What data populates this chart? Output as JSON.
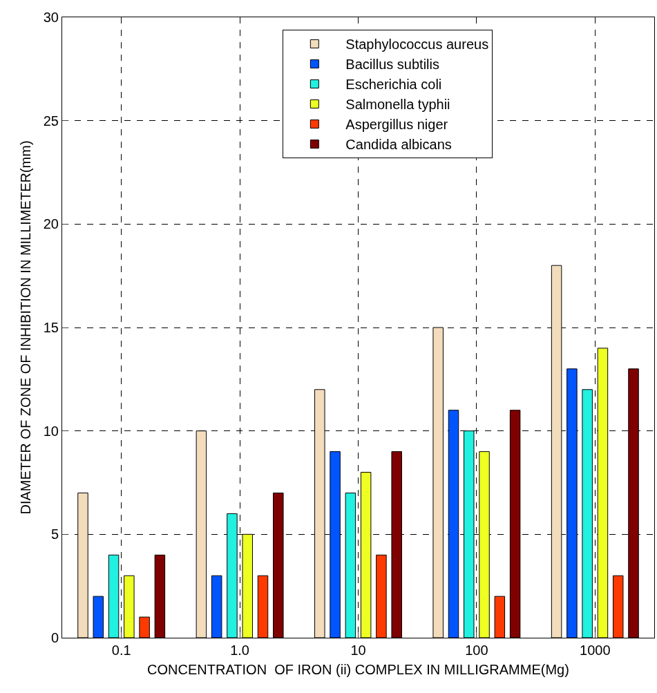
{
  "chart_data": {
    "type": "bar",
    "xlabel": "CONCENTRATION  OF IRON (ii) COMPLEX IN MILLIGRAMME(Mg)",
    "ylabel": "DIAMETER OF ZONE OF INHIBITION IN MILLIMETER(mm)",
    "categories": [
      "0.1",
      "1.0",
      "10",
      "100",
      "1000"
    ],
    "series": [
      {
        "name": "Staphylococcus aureus",
        "color": "#f2dcbc",
        "values": [
          7,
          10,
          12,
          15,
          18
        ]
      },
      {
        "name": "Bacillus subtilis",
        "color": "#0055ff",
        "values": [
          2,
          3,
          9,
          11,
          13
        ]
      },
      {
        "name": "Escherichia coli",
        "color": "#22f0e0",
        "values": [
          4,
          6,
          7,
          10,
          12
        ]
      },
      {
        "name": "Salmonella typhii",
        "color": "#eeff22",
        "values": [
          3,
          5,
          8,
          9,
          14
        ]
      },
      {
        "name": "Aspergillus niger",
        "color": "#ff3a00",
        "values": [
          1,
          3,
          4,
          2,
          3
        ]
      },
      {
        "name": "Candida albicans",
        "color": "#7f0000",
        "values": [
          4,
          7,
          9,
          11,
          13
        ]
      }
    ],
    "ylim": [
      0,
      30
    ],
    "yticks": [
      0,
      5,
      10,
      15,
      20,
      25,
      30
    ],
    "grid": true,
    "legend": "top"
  }
}
